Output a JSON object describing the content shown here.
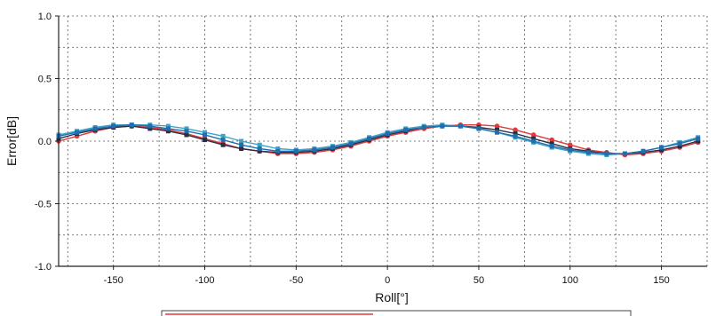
{
  "chart_data": {
    "type": "line",
    "xlabel": "Roll[°]",
    "ylabel": "Error[dB]",
    "xlim": [
      -180,
      175
    ],
    "ylim": [
      -1.0,
      1.0
    ],
    "x_ticks": [
      -150,
      -100,
      -50,
      0,
      50,
      100,
      150
    ],
    "y_ticks": [
      1.0,
      0.5,
      0.0,
      -0.5,
      -1.0
    ],
    "y_tick_labels": [
      "1.0",
      "0.5",
      "0.0",
      "-0.5",
      "-1.0"
    ],
    "grid": true,
    "x": [
      -180,
      -170,
      -160,
      -150,
      -140,
      -130,
      -120,
      -110,
      -100,
      -90,
      -80,
      -70,
      -60,
      -50,
      -40,
      -30,
      -20,
      -10,
      0,
      10,
      20,
      30,
      40,
      50,
      60,
      70,
      80,
      90,
      100,
      110,
      120,
      130,
      140,
      150,
      160,
      170
    ],
    "series": [
      {
        "color": "#e03a3a",
        "values": [
          0.0,
          0.04,
          0.08,
          0.11,
          0.12,
          0.11,
          0.09,
          0.06,
          0.02,
          -0.02,
          -0.06,
          -0.08,
          -0.1,
          -0.1,
          -0.09,
          -0.07,
          -0.04,
          0.0,
          0.04,
          0.07,
          0.1,
          0.12,
          0.13,
          0.13,
          0.12,
          0.09,
          0.05,
          0.01,
          -0.03,
          -0.07,
          -0.09,
          -0.11,
          -0.1,
          -0.08,
          -0.05,
          -0.01
        ]
      },
      {
        "color": "#2c2c44",
        "values": [
          0.02,
          0.06,
          0.09,
          0.11,
          0.12,
          0.1,
          0.08,
          0.05,
          0.01,
          -0.03,
          -0.06,
          -0.08,
          -0.09,
          -0.09,
          -0.08,
          -0.06,
          -0.03,
          0.01,
          0.05,
          0.08,
          0.11,
          0.12,
          0.12,
          0.11,
          0.09,
          0.06,
          0.02,
          -0.02,
          -0.06,
          -0.08,
          -0.1,
          -0.1,
          -0.09,
          -0.07,
          -0.04,
          0.0
        ]
      },
      {
        "color": "#3fa3c8",
        "values": [
          0.05,
          0.08,
          0.11,
          0.13,
          0.13,
          0.13,
          0.12,
          0.1,
          0.07,
          0.04,
          0.0,
          -0.03,
          -0.06,
          -0.07,
          -0.06,
          -0.04,
          -0.01,
          0.03,
          0.07,
          0.1,
          0.12,
          0.13,
          0.12,
          0.1,
          0.07,
          0.03,
          -0.01,
          -0.05,
          -0.08,
          -0.1,
          -0.11,
          -0.1,
          -0.08,
          -0.05,
          -0.01,
          0.03
        ]
      },
      {
        "color": "#1f6fb0",
        "values": [
          0.04,
          0.07,
          0.1,
          0.12,
          0.13,
          0.12,
          0.1,
          0.08,
          0.05,
          0.01,
          -0.03,
          -0.06,
          -0.08,
          -0.08,
          -0.07,
          -0.05,
          -0.02,
          0.02,
          0.06,
          0.09,
          0.11,
          0.12,
          0.12,
          0.1,
          0.07,
          0.04,
          0.0,
          -0.04,
          -0.07,
          -0.09,
          -0.1,
          -0.1,
          -0.08,
          -0.05,
          -0.02,
          0.02
        ]
      }
    ]
  }
}
